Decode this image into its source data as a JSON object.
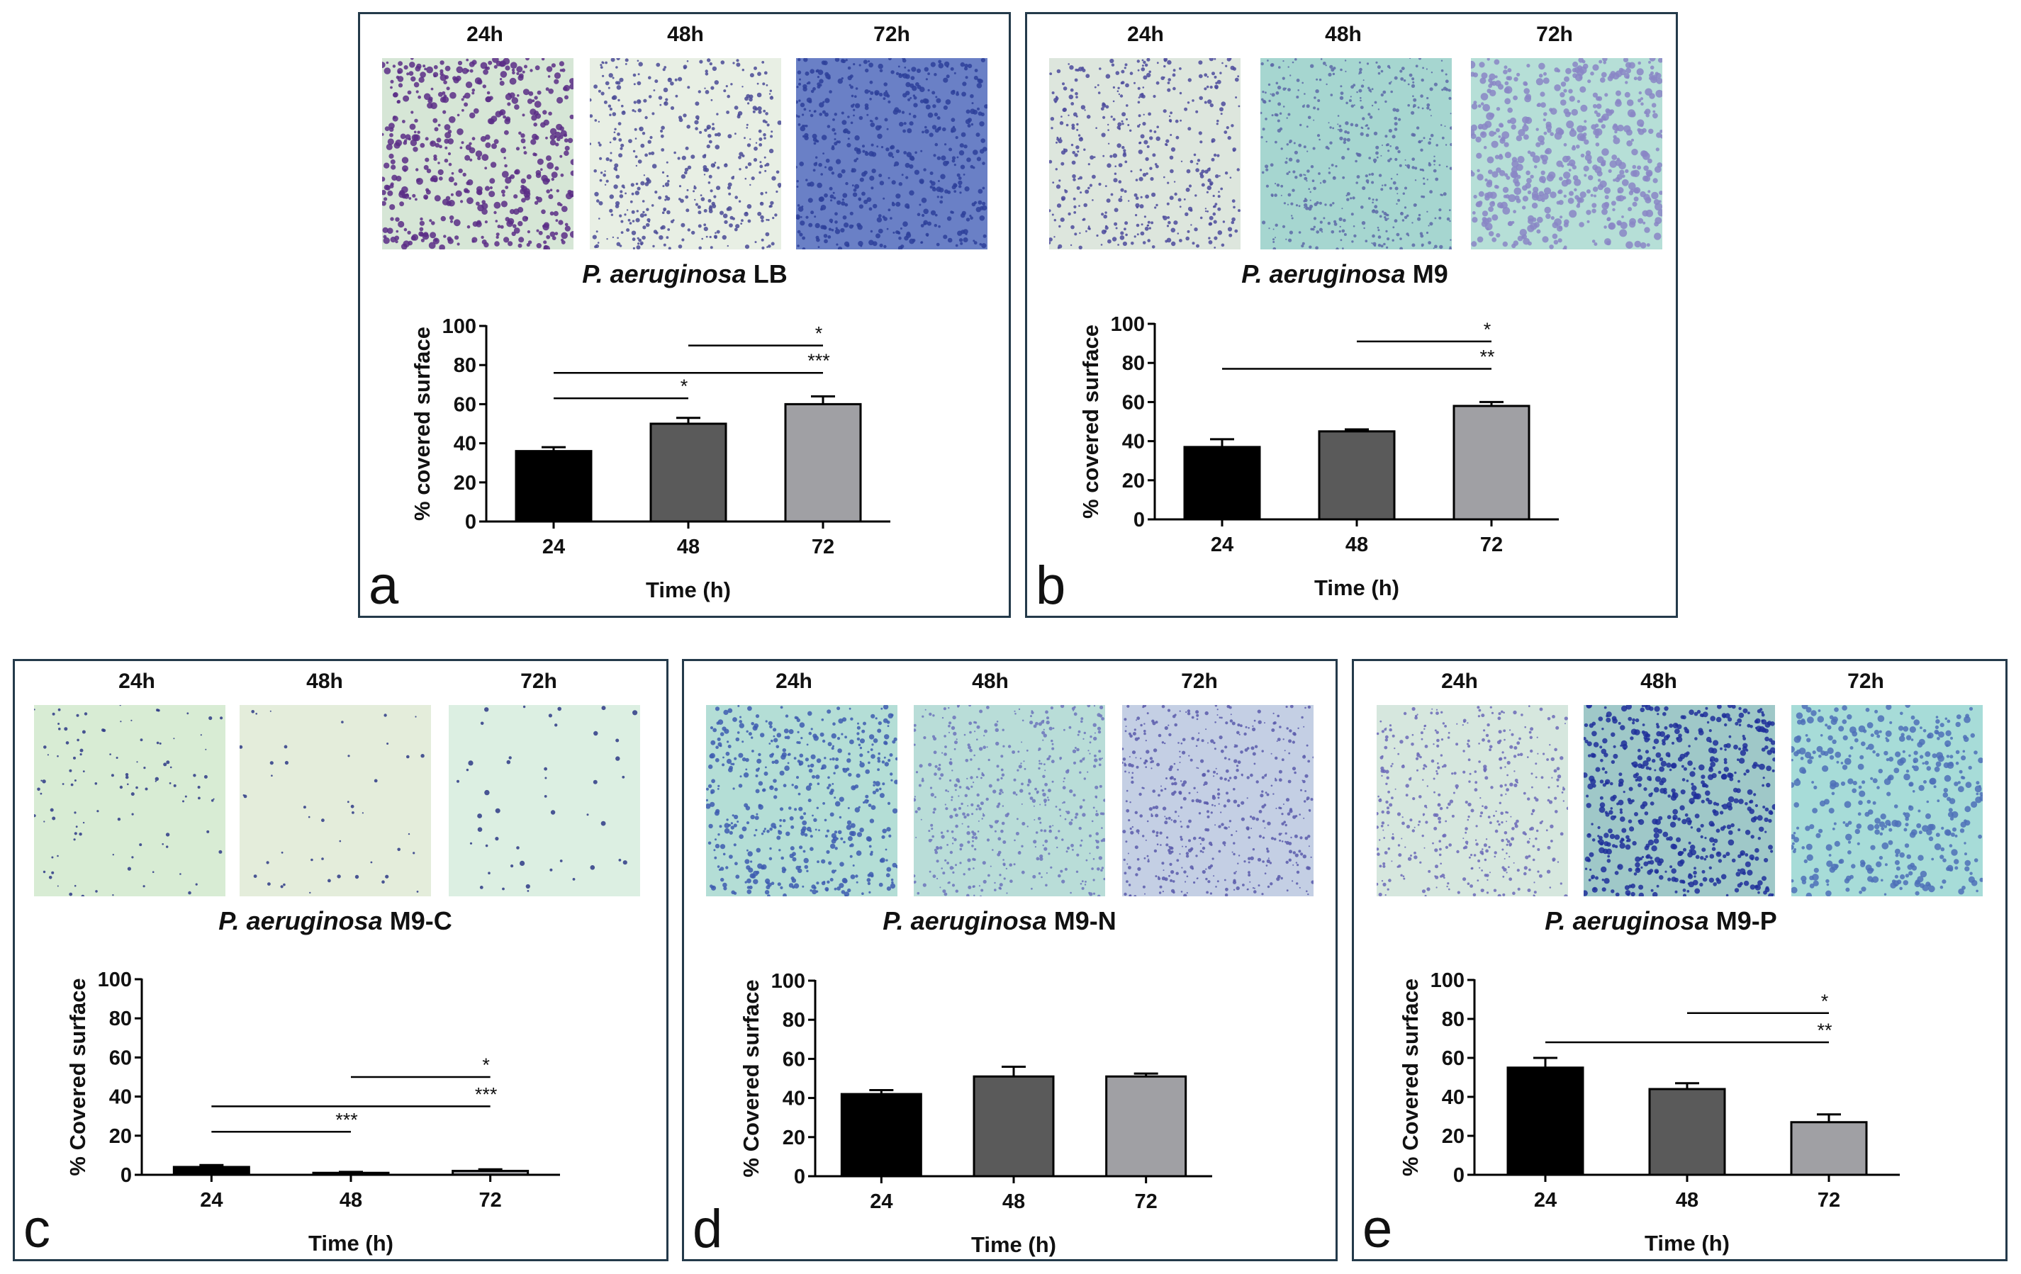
{
  "figure": {
    "panels": [
      {
        "id": "a",
        "letter": "a",
        "times": [
          "24h",
          "48h",
          "72h"
        ],
        "caption_species": "P. aeruginosa",
        "caption_medium": "LB",
        "micrographs": [
          {
            "name": "micrograph-24h",
            "bg": "#d6e6d6",
            "dot": "#5b2d86",
            "density": 0.55,
            "size": 9
          },
          {
            "name": "micrograph-48h",
            "bg": "#e8efe4",
            "dot": "#4a4a96",
            "density": 0.5,
            "size": 6
          },
          {
            "name": "micrograph-72h",
            "bg": "#6a80c6",
            "dot": "#2d3f9a",
            "density": 0.6,
            "size": 7
          }
        ],
        "chart_data": {
          "type": "bar",
          "title": "P. aeruginosa LB",
          "categories": [
            "24",
            "48",
            "72"
          ],
          "values": [
            36,
            50,
            60
          ],
          "errors": [
            2,
            3,
            4
          ],
          "colors": [
            "#000000",
            "#5a5a5a",
            "#a0a0a4"
          ],
          "ylabel": "% covered surface",
          "xlabel": "Time (h)",
          "ylim": [
            0,
            100
          ],
          "yticks": [
            "0",
            "20",
            "40",
            "60",
            "80",
            "100"
          ],
          "significance": [
            {
              "from": 1,
              "to": 2,
              "level": 90,
              "label": "*"
            },
            {
              "from": 0,
              "to": 2,
              "level": 76,
              "label": "***"
            },
            {
              "from": 0,
              "to": 1,
              "level": 63,
              "label": "*"
            }
          ]
        }
      },
      {
        "id": "b",
        "letter": "b",
        "times": [
          "24h",
          "48h",
          "72h"
        ],
        "caption_species": "P. aeruginosa",
        "caption_medium": "M9",
        "micrographs": [
          {
            "name": "micrograph-24h",
            "bg": "#dde6dd",
            "dot": "#4c4a9c",
            "density": 0.5,
            "size": 6
          },
          {
            "name": "micrograph-48h",
            "bg": "#a6d6d0",
            "dot": "#5d6aa8",
            "density": 0.55,
            "size": 5
          },
          {
            "name": "micrograph-72h",
            "bg": "#b6dfd7",
            "dot": "#8a86c6",
            "density": 0.6,
            "size": 10
          }
        ],
        "chart_data": {
          "type": "bar",
          "title": "P. aeruginosa M9",
          "categories": [
            "24",
            "48",
            "72"
          ],
          "values": [
            37,
            45,
            58
          ],
          "errors": [
            4,
            1,
            2
          ],
          "colors": [
            "#000000",
            "#5a5a5a",
            "#a0a0a4"
          ],
          "ylabel": "% covered surface",
          "xlabel": "Time (h)",
          "ylim": [
            0,
            100
          ],
          "yticks": [
            "0",
            "20",
            "40",
            "60",
            "80",
            "100"
          ],
          "significance": [
            {
              "from": 1,
              "to": 2,
              "level": 91,
              "label": "*"
            },
            {
              "from": 0,
              "to": 2,
              "level": 77,
              "label": "**"
            }
          ]
        }
      },
      {
        "id": "c",
        "letter": "c",
        "times": [
          "24h",
          "48h",
          "72h"
        ],
        "caption_species": "P. aeruginosa",
        "caption_medium": "M9-C",
        "micrographs": [
          {
            "name": "micrograph-24h",
            "bg": "#d8ecd4",
            "dot": "#2e3a86",
            "density": 0.12,
            "size": 5
          },
          {
            "name": "micrograph-48h",
            "bg": "#e4eddb",
            "dot": "#2e3a86",
            "density": 0.05,
            "size": 5
          },
          {
            "name": "micrograph-72h",
            "bg": "#dcefe2",
            "dot": "#2e3a86",
            "density": 0.05,
            "size": 7
          }
        ],
        "chart_data": {
          "type": "bar",
          "title": "P. aeruginosa M9-C",
          "categories": [
            "24",
            "48",
            "72"
          ],
          "values": [
            4,
            1,
            2
          ],
          "errors": [
            1,
            0.5,
            0.8
          ],
          "colors": [
            "#000000",
            "#5a5a5a",
            "#a0a0a4"
          ],
          "ylabel": "% Covered surface",
          "xlabel": "Time (h)",
          "ylim": [
            0,
            100
          ],
          "yticks": [
            "0",
            "20",
            "40",
            "60",
            "80",
            "100"
          ],
          "significance": [
            {
              "from": 1,
              "to": 2,
              "level": 50,
              "label": "*"
            },
            {
              "from": 0,
              "to": 2,
              "level": 35,
              "label": "***"
            },
            {
              "from": 0,
              "to": 1,
              "level": 22,
              "label": "***"
            }
          ]
        }
      },
      {
        "id": "d",
        "letter": "d",
        "times": [
          "24h",
          "48h",
          "72h"
        ],
        "caption_species": "P. aeruginosa",
        "caption_medium": "M9-N",
        "micrographs": [
          {
            "name": "micrograph-24h",
            "bg": "#b4ded6",
            "dot": "#3d5cb0",
            "density": 0.55,
            "size": 7
          },
          {
            "name": "micrograph-48h",
            "bg": "#b9ddd8",
            "dot": "#6c74bc",
            "density": 0.55,
            "size": 5
          },
          {
            "name": "micrograph-72h",
            "bg": "#c4cfe4",
            "dot": "#5a5aac",
            "density": 0.6,
            "size": 5
          }
        ],
        "chart_data": {
          "type": "bar",
          "title": "P. aeruginosa M9-N",
          "categories": [
            "24",
            "48",
            "72"
          ],
          "values": [
            42,
            51,
            51
          ],
          "errors": [
            2,
            5,
            1.5
          ],
          "colors": [
            "#000000",
            "#5a5a5a",
            "#a0a0a4"
          ],
          "ylabel": "% Covered surface",
          "xlabel": "Time (h)",
          "ylim": [
            0,
            100
          ],
          "yticks": [
            "0",
            "20",
            "40",
            "60",
            "80",
            "100"
          ],
          "significance": []
        }
      },
      {
        "id": "e",
        "letter": "e",
        "times": [
          "24h",
          "48h",
          "72h"
        ],
        "caption_species": "P. aeruginosa",
        "caption_medium": "M9-P",
        "micrographs": [
          {
            "name": "micrograph-24h",
            "bg": "#d6e7de",
            "dot": "#6b68b8",
            "density": 0.5,
            "size": 5
          },
          {
            "name": "micrograph-48h",
            "bg": "#9fc8c8",
            "dot": "#1f2f9a",
            "density": 0.65,
            "size": 8
          },
          {
            "name": "micrograph-72h",
            "bg": "#a7dcd8",
            "dot": "#4d70b8",
            "density": 0.45,
            "size": 9
          }
        ],
        "chart_data": {
          "type": "bar",
          "title": "P. aeruginosa M9-P",
          "categories": [
            "24",
            "48",
            "72"
          ],
          "values": [
            55,
            44,
            27
          ],
          "errors": [
            5,
            3,
            4
          ],
          "colors": [
            "#000000",
            "#5a5a5a",
            "#a0a0a4"
          ],
          "ylabel": "% Covered surface",
          "xlabel": "Time (h)",
          "ylim": [
            0,
            100
          ],
          "yticks": [
            "0",
            "20",
            "40",
            "60",
            "80",
            "100"
          ],
          "significance": [
            {
              "from": 1,
              "to": 2,
              "level": 83,
              "label": "*"
            },
            {
              "from": 0,
              "to": 2,
              "level": 68,
              "label": "**"
            }
          ]
        }
      }
    ]
  }
}
